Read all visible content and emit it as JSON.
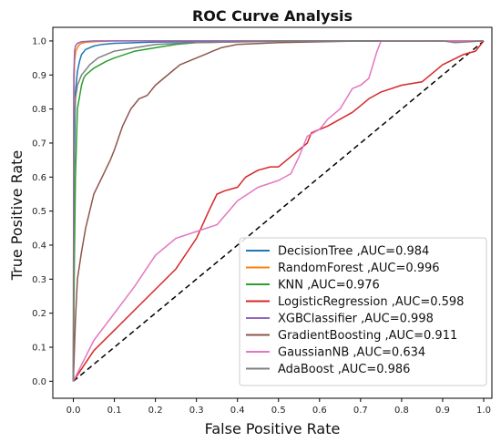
{
  "chart_data": {
    "type": "line",
    "title": "ROC Curve Analysis",
    "xlabel": "False Positive Rate",
    "ylabel": "True Positive Rate",
    "xlim": [
      -0.05,
      1.02
    ],
    "ylim": [
      -0.05,
      1.04
    ],
    "xticks": [
      "0.0",
      "0.1",
      "0.2",
      "0.3",
      "0.4",
      "0.5",
      "0.6",
      "0.7",
      "0.8",
      "0.9",
      "1.0"
    ],
    "yticks": [
      "0.0",
      "0.1",
      "0.2",
      "0.3",
      "0.4",
      "0.5",
      "0.6",
      "0.7",
      "0.8",
      "0.9",
      "1.0"
    ],
    "grid": false,
    "legend_position": "lower-right",
    "chance_line": {
      "x": [
        0,
        1
      ],
      "y": [
        0,
        1
      ],
      "color": "#000000",
      "style": "dashed"
    },
    "series": [
      {
        "name": "DecisionTree ,AUC=0.984",
        "color": "#1f77b4",
        "x": [
          0,
          0.002,
          0.005,
          0.01,
          0.015,
          0.02,
          0.03,
          0.05,
          0.07,
          0.1,
          0.2,
          0.5,
          1.0
        ],
        "y": [
          0,
          0.6,
          0.85,
          0.91,
          0.94,
          0.96,
          0.975,
          0.985,
          0.99,
          0.993,
          0.997,
          0.999,
          1.0
        ]
      },
      {
        "name": "RandomForest ,AUC=0.996",
        "color": "#ff7f0e",
        "x": [
          0,
          0.001,
          0.003,
          0.006,
          0.01,
          0.015,
          0.02,
          0.03,
          0.05,
          0.1,
          1.0
        ],
        "y": [
          0,
          0.85,
          0.94,
          0.97,
          0.98,
          0.99,
          0.993,
          0.996,
          0.998,
          1.0,
          1.0
        ]
      },
      {
        "name": "KNN ,AUC=0.976",
        "color": "#2ca02c",
        "x": [
          0,
          0.002,
          0.005,
          0.01,
          0.02,
          0.025,
          0.03,
          0.05,
          0.08,
          0.1,
          0.15,
          0.2,
          0.25,
          0.3,
          0.5,
          1.0
        ],
        "y": [
          0,
          0.3,
          0.6,
          0.8,
          0.87,
          0.89,
          0.9,
          0.92,
          0.94,
          0.95,
          0.97,
          0.98,
          0.99,
          0.995,
          1.0,
          1.0
        ]
      },
      {
        "name": "LogisticRegression ,AUC=0.598",
        "color": "#d62728",
        "x": [
          0,
          0.05,
          0.1,
          0.15,
          0.2,
          0.25,
          0.3,
          0.33,
          0.35,
          0.37,
          0.4,
          0.42,
          0.45,
          0.48,
          0.5,
          0.52,
          0.55,
          0.57,
          0.58,
          0.6,
          0.62,
          0.65,
          0.68,
          0.7,
          0.72,
          0.75,
          0.8,
          0.85,
          0.87,
          0.9,
          0.95,
          0.98,
          1.0
        ],
        "y": [
          0,
          0.09,
          0.15,
          0.21,
          0.27,
          0.33,
          0.42,
          0.5,
          0.55,
          0.56,
          0.57,
          0.6,
          0.62,
          0.63,
          0.63,
          0.65,
          0.68,
          0.7,
          0.73,
          0.74,
          0.75,
          0.77,
          0.79,
          0.81,
          0.83,
          0.85,
          0.87,
          0.88,
          0.9,
          0.93,
          0.96,
          0.97,
          1.0
        ]
      },
      {
        "name": "XGBClassifier ,AUC=0.998",
        "color": "#9467bd",
        "x": [
          0,
          0.001,
          0.003,
          0.005,
          0.01,
          0.02,
          0.05,
          1.0
        ],
        "y": [
          0,
          0.9,
          0.97,
          0.985,
          0.993,
          0.998,
          1.0,
          1.0
        ]
      },
      {
        "name": "GradientBoosting ,AUC=0.911",
        "color": "#8c564b",
        "x": [
          0,
          0.005,
          0.01,
          0.02,
          0.03,
          0.05,
          0.07,
          0.09,
          0.1,
          0.12,
          0.14,
          0.16,
          0.18,
          0.2,
          0.22,
          0.24,
          0.26,
          0.28,
          0.3,
          0.32,
          0.34,
          0.36,
          0.4,
          0.5,
          0.7,
          1.0
        ],
        "y": [
          0,
          0.18,
          0.3,
          0.38,
          0.45,
          0.55,
          0.6,
          0.65,
          0.68,
          0.75,
          0.8,
          0.83,
          0.84,
          0.87,
          0.89,
          0.91,
          0.93,
          0.94,
          0.95,
          0.96,
          0.97,
          0.98,
          0.99,
          0.995,
          1.0,
          1.0
        ]
      },
      {
        "name": "GaussianNB ,AUC=0.634",
        "color": "#e377c2",
        "x": [
          0,
          0.05,
          0.1,
          0.15,
          0.2,
          0.25,
          0.3,
          0.35,
          0.4,
          0.45,
          0.5,
          0.53,
          0.55,
          0.57,
          0.6,
          0.62,
          0.65,
          0.68,
          0.7,
          0.72,
          0.73,
          0.74,
          0.75,
          0.8,
          0.9,
          1.0
        ],
        "y": [
          0,
          0.12,
          0.2,
          0.28,
          0.37,
          0.42,
          0.44,
          0.46,
          0.53,
          0.57,
          0.59,
          0.61,
          0.66,
          0.72,
          0.74,
          0.77,
          0.8,
          0.86,
          0.87,
          0.89,
          0.93,
          0.97,
          1.0,
          1.0,
          1.0,
          1.0
        ]
      },
      {
        "name": "AdaBoost ,AUC=0.986",
        "color": "#7f7f7f",
        "x": [
          0,
          0.002,
          0.005,
          0.01,
          0.02,
          0.04,
          0.06,
          0.1,
          0.15,
          0.2,
          0.3,
          0.5,
          0.9,
          0.93,
          1.0
        ],
        "y": [
          0,
          0.75,
          0.83,
          0.87,
          0.9,
          0.93,
          0.95,
          0.97,
          0.98,
          0.99,
          0.995,
          0.999,
          1.0,
          0.995,
          1.0
        ]
      }
    ]
  }
}
